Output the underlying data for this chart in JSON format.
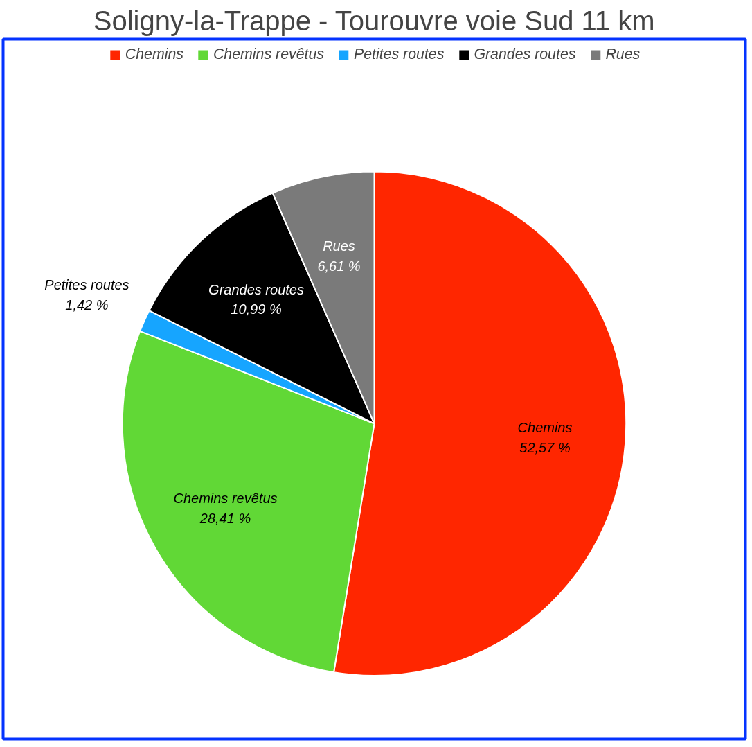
{
  "chart_data": {
    "type": "pie",
    "title": "Soligny-la-Trappe - Tourouvre voie Sud 11 km",
    "categories": [
      "Chemins",
      "Chemins revêtus",
      "Petites routes",
      "Grandes routes",
      "Rues"
    ],
    "values": [
      52.57,
      28.41,
      1.42,
      10.99,
      6.61
    ],
    "colors": [
      "#ff2600",
      "#61d836",
      "#16a5ff",
      "#000000",
      "#7a7a7a"
    ],
    "value_labels": [
      "52,57 %",
      "28,41 %",
      "1,42 %",
      "10,99 %",
      "6,61 %"
    ],
    "legend": "top"
  }
}
